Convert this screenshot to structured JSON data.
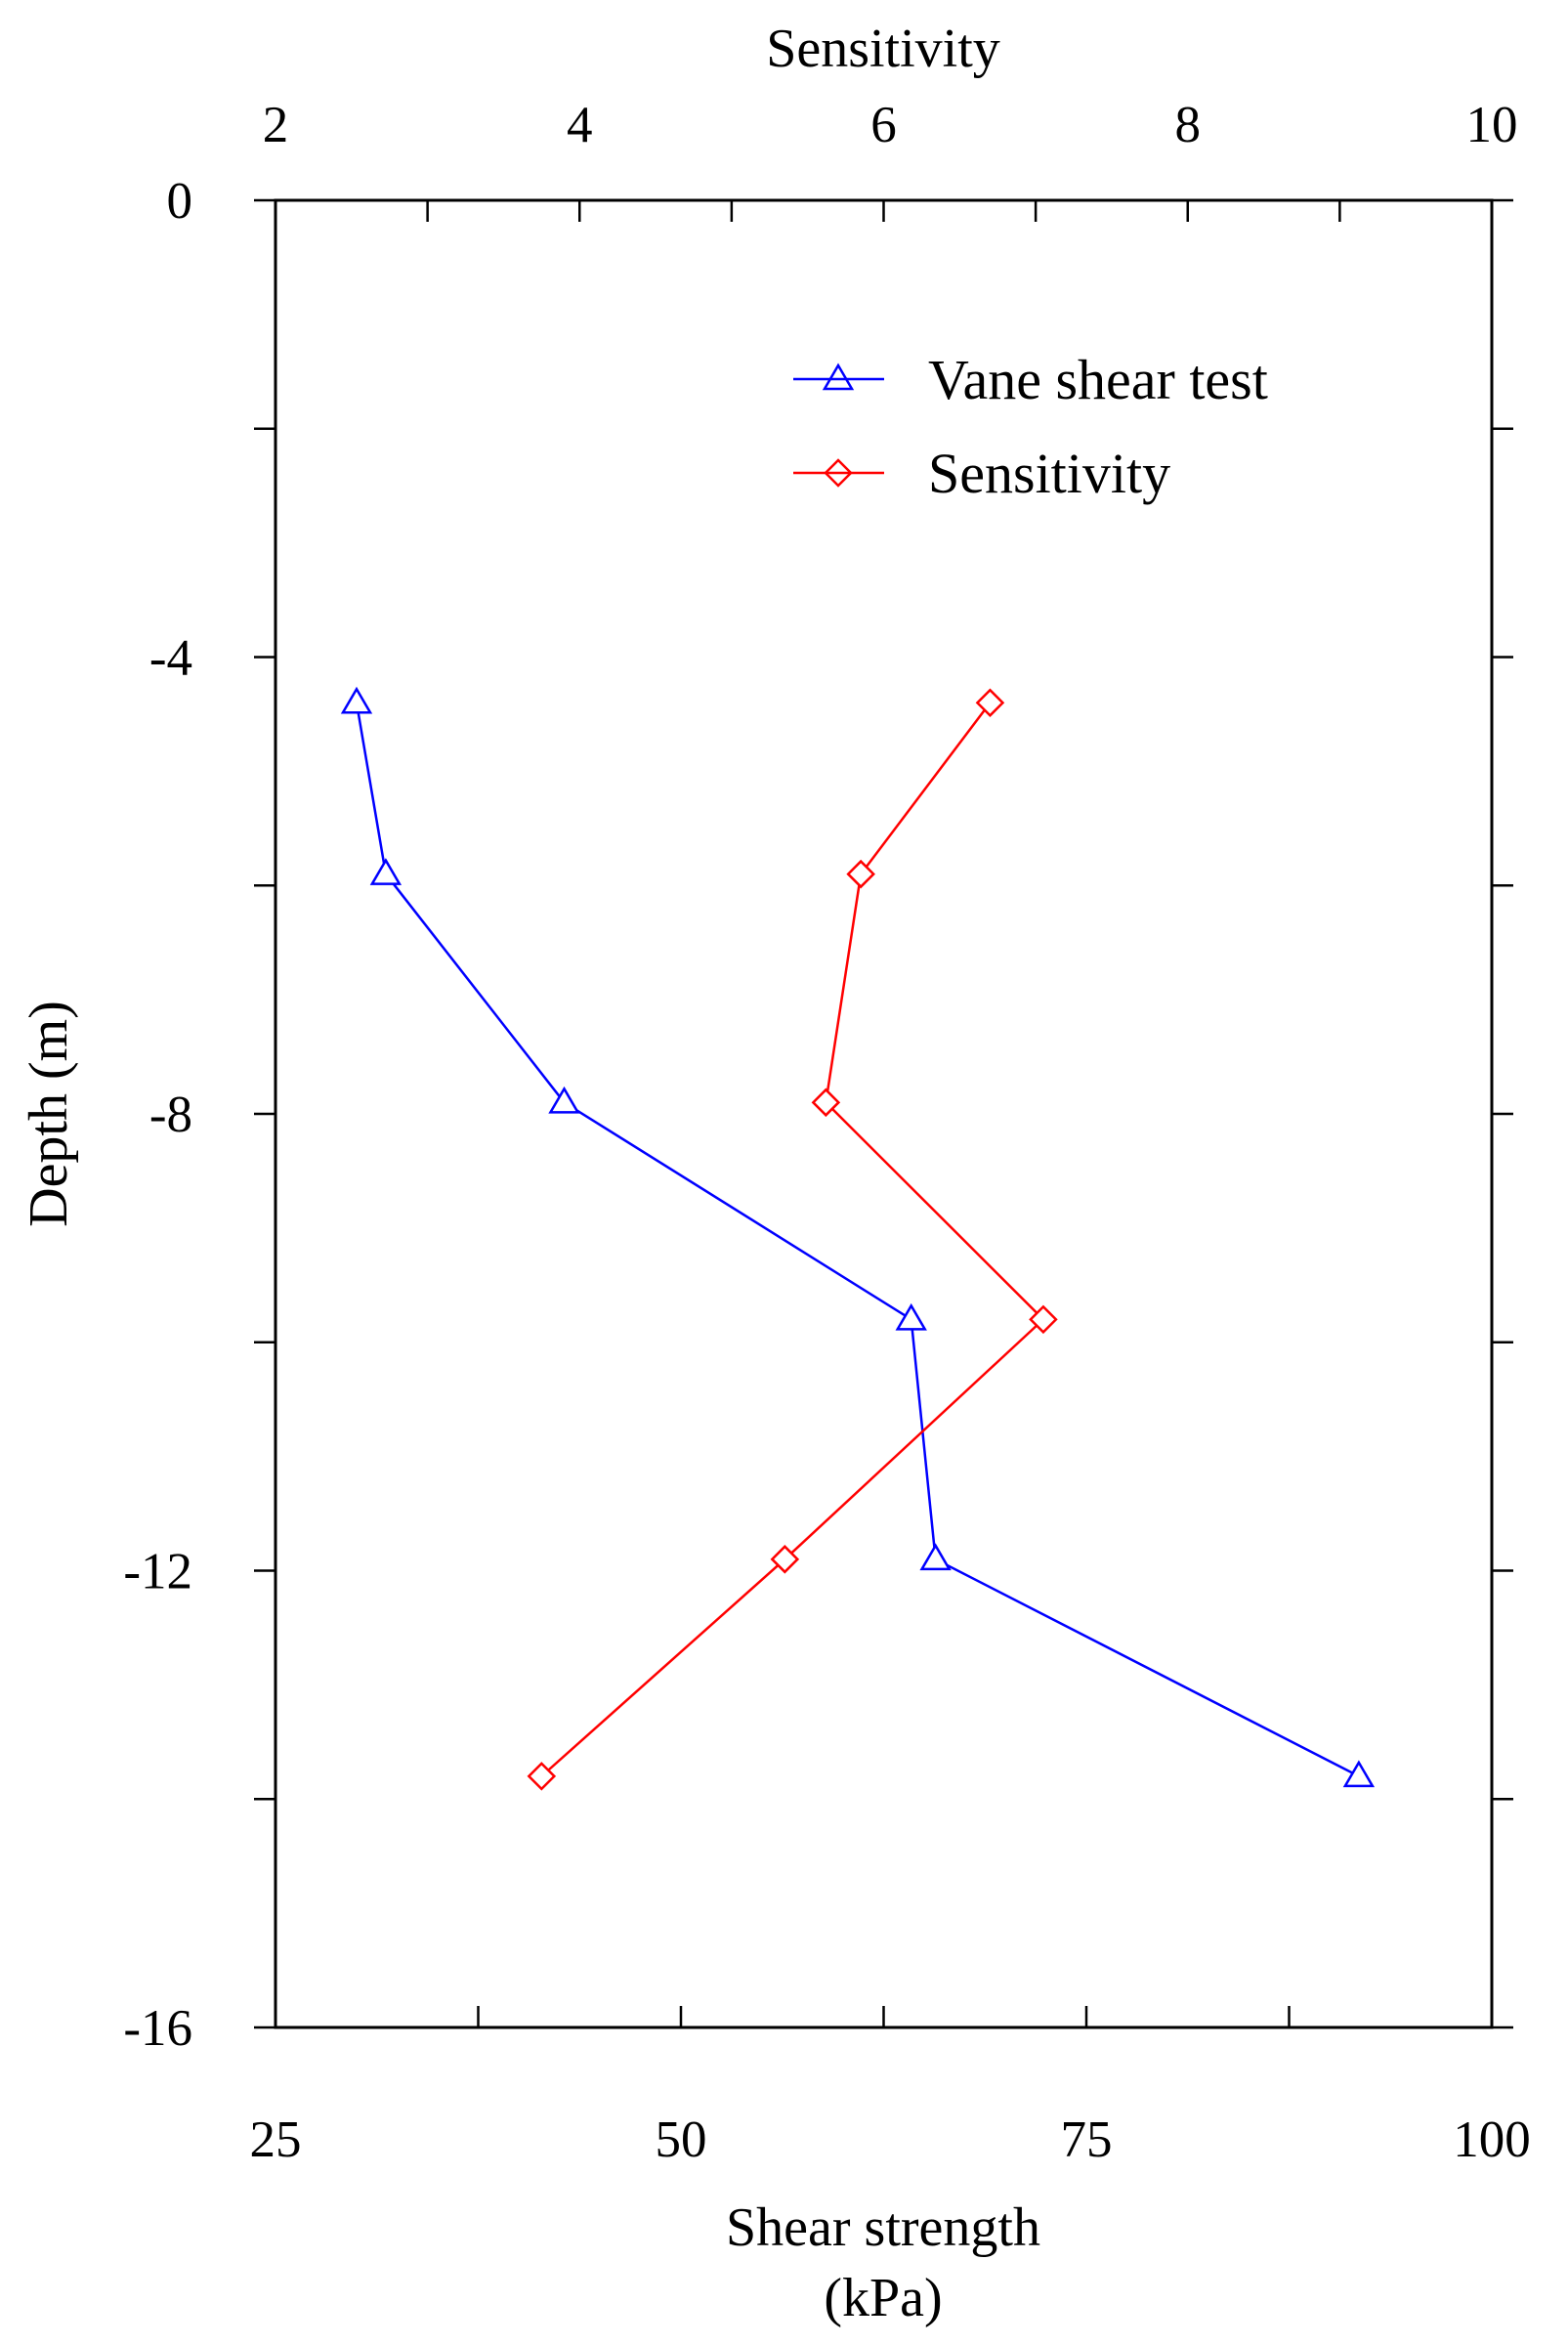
{
  "chart_data": {
    "type": "line",
    "top_axis": {
      "label": "Sensitivity",
      "range": [
        2,
        10
      ],
      "ticks": [
        "2",
        "4",
        "6",
        "8",
        "10"
      ],
      "tick_values": [
        2,
        4,
        6,
        8,
        10
      ]
    },
    "bottom_axis": {
      "label_line1": "Shear strength",
      "label_line2": "(kPa)",
      "range": [
        25,
        100
      ],
      "ticks": [
        "25",
        "50",
        "75",
        "100"
      ],
      "tick_values": [
        25,
        50,
        75,
        100
      ]
    },
    "y_axis": {
      "label": "Depth (m)",
      "range": [
        -16,
        0
      ],
      "ticks": [
        "0",
        "-4",
        "-8",
        "-12",
        "-16"
      ],
      "tick_values": [
        0,
        -4,
        -8,
        -12,
        -16
      ]
    },
    "legend_position": "top-right",
    "series": [
      {
        "name": "Vane shear test",
        "axis": "bottom",
        "marker": "triangle",
        "color": "#0000ff",
        "x": [
          30,
          31.8,
          42.8,
          64.2,
          65.7,
          91.8
        ],
        "y": [
          -4.4,
          -5.9,
          -7.9,
          -9.8,
          -11.9,
          -13.8
        ]
      },
      {
        "name": "Sensitivity",
        "axis": "top",
        "marker": "diamond",
        "color": "#ff0000",
        "x": [
          6.7,
          5.85,
          5.62,
          7.05,
          5.35,
          3.75
        ],
        "y": [
          -4.4,
          -5.9,
          -7.9,
          -9.8,
          -11.9,
          -13.8
        ]
      }
    ]
  }
}
